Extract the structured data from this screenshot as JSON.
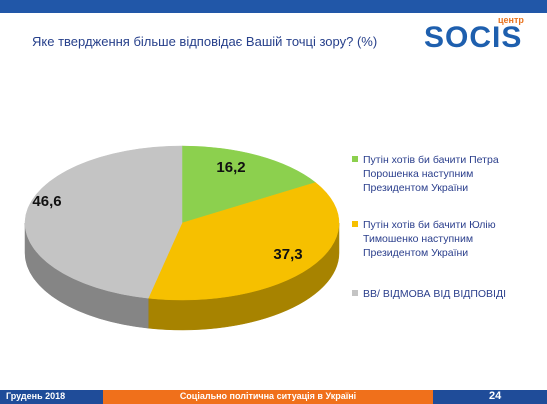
{
  "question": "Яке твердження більше відповідає Вашій точці зору? (%)",
  "logo": {
    "small": "центр",
    "big": "SOCIS"
  },
  "chart_data": {
    "type": "pie",
    "title": "Яке твердження більше відповідає Вашій точці зору? (%)",
    "slices": [
      {
        "label": "Путін хотів би бачити Петра Порошенка наступним Президентом України",
        "value": 16.2,
        "display": "16,2",
        "color": "#8cd04e"
      },
      {
        "label": "Путін хотів би бачити Юлію Тимошенко наступним Президентом України",
        "value": 37.3,
        "display": "37,3",
        "color": "#f6c000"
      },
      {
        "label": "ВВ/ ВІДМОВА ВІД ВІДПОВІДІ",
        "value": 46.6,
        "display": "46,6",
        "color": "#c4c4c4"
      }
    ],
    "legend": [
      [
        "Путін хотів би бачити Петра",
        "Порошенка наступним",
        "Президентом України"
      ],
      [
        "Путін хотів би бачити Юлію",
        "Тимошенко наступним",
        "Президентом України"
      ],
      [
        "ВВ/ ВІДМОВА ВІД ВІДПОВІДІ"
      ]
    ],
    "legend_position": "right"
  },
  "footer": {
    "date": "Грудень 2018",
    "title": "Соціально політична ситуація в Україні",
    "page": "24"
  },
  "colors": {
    "brand_blue": "#1e5fae",
    "accent_orange": "#f0701b"
  }
}
